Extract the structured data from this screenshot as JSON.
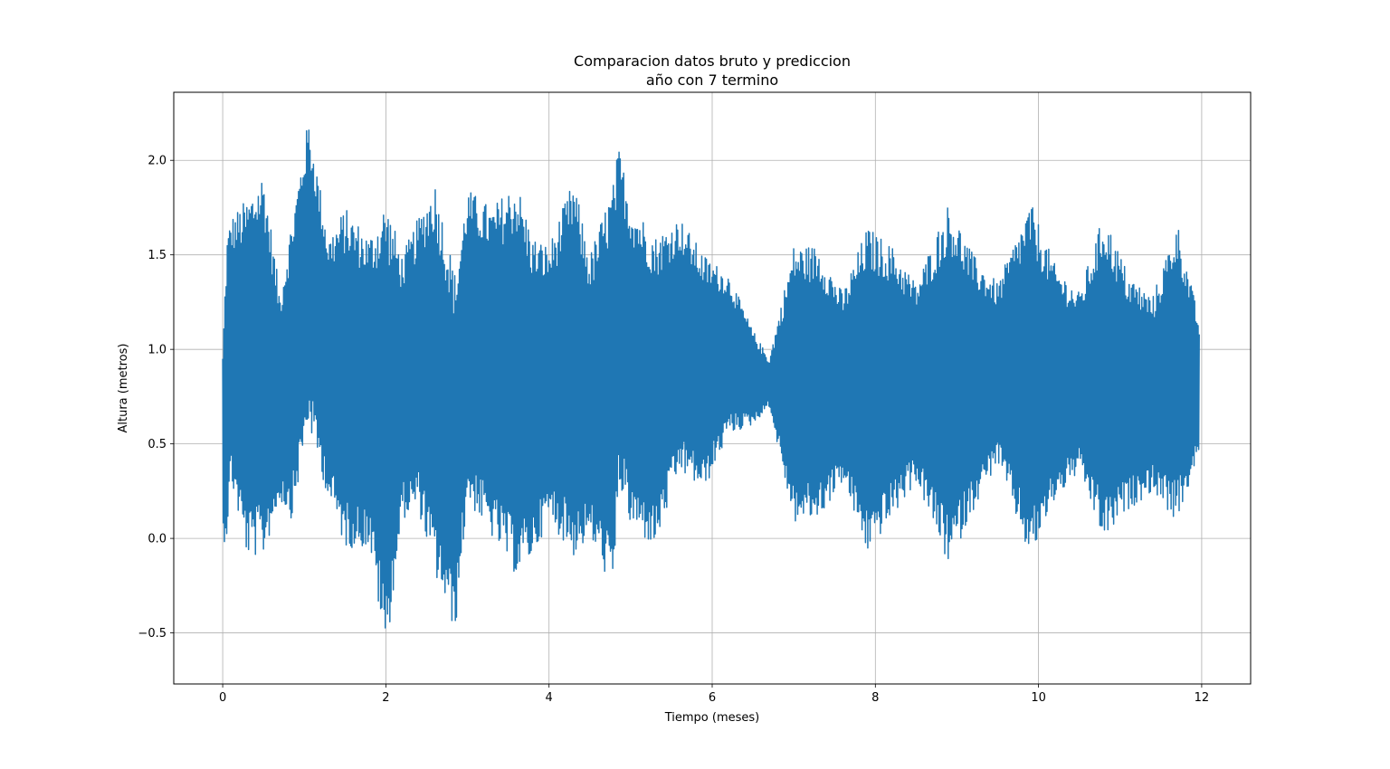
{
  "chart_data": {
    "type": "line",
    "title_line1": "Comparacion datos bruto y prediccion",
    "title_line2": "año con 7 termino",
    "xlabel": "Tiempo (meses)",
    "ylabel": "Altura (metros)",
    "xlim": [
      -0.6,
      12.6
    ],
    "ylim": [
      -0.77,
      2.36
    ],
    "xticks": [
      0,
      2,
      4,
      6,
      8,
      10,
      12
    ],
    "xtick_labels": [
      "0",
      "2",
      "4",
      "6",
      "8",
      "10",
      "12"
    ],
    "yticks": [
      -0.5,
      0.0,
      0.5,
      1.0,
      1.5,
      2.0
    ],
    "ytick_labels": [
      "−0.5",
      "0.0",
      "0.5",
      "1.0",
      "1.5",
      "2.0"
    ],
    "grid": true,
    "series": [
      {
        "color": "#1f77b4",
        "x_range": [
          0,
          11.97
        ],
        "description_points": {
          "x": [
            0.0,
            0.05,
            0.1,
            0.3,
            0.5,
            0.7,
            0.85,
            1.05,
            1.3,
            1.5,
            1.8,
            2.0,
            2.2,
            2.4,
            2.6,
            2.85,
            3.0,
            3.3,
            3.6,
            3.8,
            4.0,
            4.3,
            4.5,
            4.8,
            4.85,
            5.0,
            5.3,
            5.6,
            5.9,
            6.2,
            6.5,
            6.7,
            7.0,
            7.3,
            7.6,
            7.9,
            8.2,
            8.5,
            8.9,
            9.2,
            9.5,
            9.9,
            10.2,
            10.5,
            10.8,
            11.1,
            11.4,
            11.7,
            11.97
          ],
          "upper": [
            1.0,
            1.6,
            1.7,
            1.8,
            1.95,
            1.3,
            1.7,
            2.22,
            1.6,
            1.75,
            1.6,
            1.8,
            1.5,
            1.7,
            1.9,
            1.4,
            1.85,
            1.75,
            1.9,
            1.6,
            1.55,
            1.9,
            1.5,
            1.9,
            2.08,
            1.8,
            1.6,
            1.7,
            1.5,
            1.4,
            1.1,
            0.95,
            1.55,
            1.55,
            1.3,
            1.65,
            1.55,
            1.35,
            1.78,
            1.5,
            1.35,
            1.78,
            1.45,
            1.3,
            1.72,
            1.4,
            1.28,
            1.68,
            1.15
          ],
          "lower": [
            -0.03,
            0.0,
            0.3,
            -0.1,
            -0.1,
            0.2,
            0.1,
            0.6,
            0.2,
            -0.05,
            -0.05,
            -0.62,
            0.1,
            0.15,
            -0.2,
            -0.5,
            0.2,
            0.0,
            -0.2,
            -0.1,
            0.1,
            -0.1,
            0.0,
            -0.3,
            0.3,
            0.05,
            -0.05,
            0.35,
            0.25,
            0.55,
            0.6,
            0.7,
            0.08,
            0.1,
            0.3,
            -0.08,
            0.1,
            0.3,
            -0.15,
            0.15,
            0.4,
            -0.12,
            0.2,
            0.35,
            -0.02,
            0.15,
            0.25,
            0.08,
            0.45
          ]
        }
      }
    ]
  }
}
